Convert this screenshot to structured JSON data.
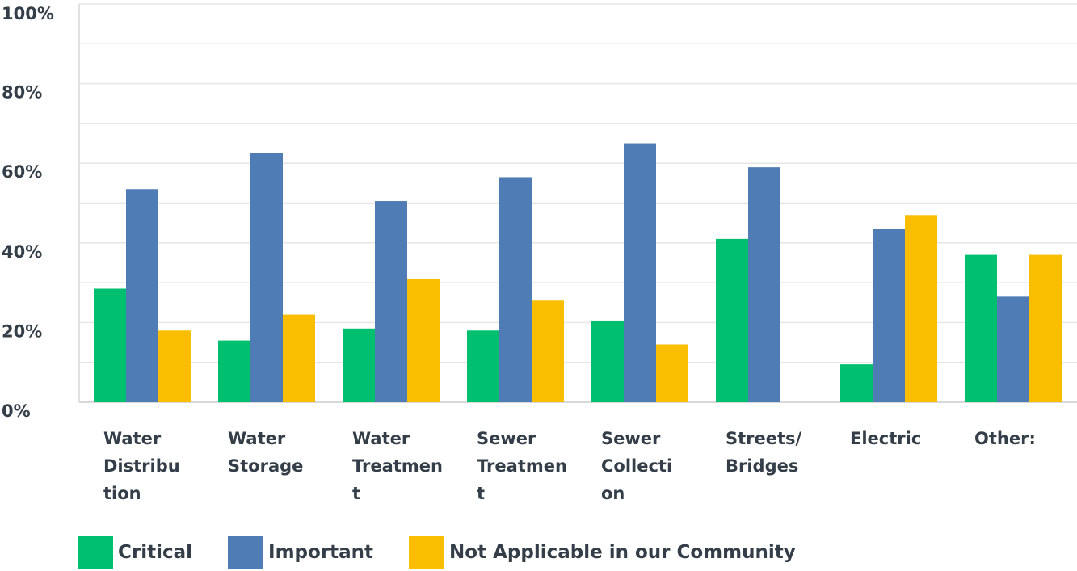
{
  "chart_data": {
    "type": "bar",
    "categories": [
      [
        "Water",
        "Distribu",
        "tion"
      ],
      [
        "Water",
        "Storage"
      ],
      [
        "Water",
        "Treatmen",
        "t"
      ],
      [
        "Sewer",
        "Treatmen",
        "t"
      ],
      [
        "Sewer",
        "Collecti",
        "on"
      ],
      [
        "Streets/",
        "Bridges"
      ],
      [
        "Electric"
      ],
      [
        "Other:"
      ]
    ],
    "series": [
      {
        "name": "Critical",
        "color": "#00bf6f",
        "values": [
          28.5,
          15.5,
          18.5,
          18,
          20.5,
          41,
          9.5,
          37
        ]
      },
      {
        "name": "Important",
        "color": "#507cb6",
        "values": [
          53.5,
          62.5,
          50.5,
          56.5,
          65,
          59,
          43.5,
          26.5
        ]
      },
      {
        "name": "Not Applicable in our Community",
        "color": "#f9be00",
        "values": [
          18,
          22,
          31,
          25.5,
          14.5,
          0,
          47,
          37
        ]
      }
    ],
    "yticks": [
      "0%",
      "20%",
      "40%",
      "60%",
      "80%",
      "100%"
    ],
    "ylim": [
      0,
      100
    ],
    "grid": true,
    "legend": "bottom-left"
  }
}
